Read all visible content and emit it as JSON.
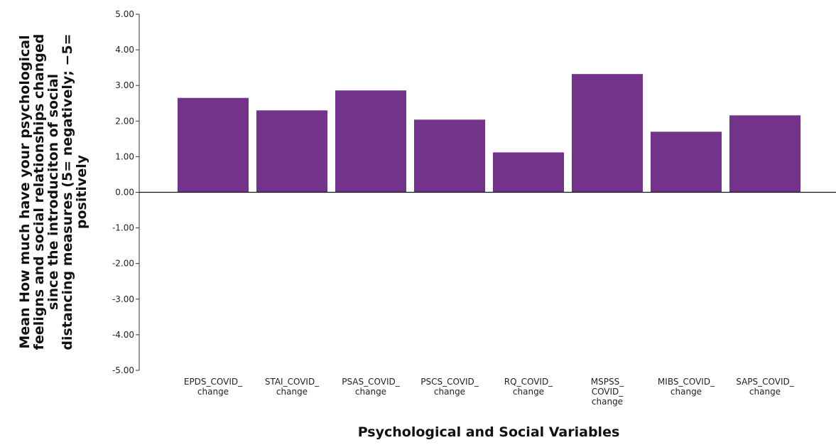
{
  "chart_data": {
    "type": "bar",
    "categories": [
      [
        "EPDS_COVID_",
        "change"
      ],
      [
        "STAI_COVID_",
        "change"
      ],
      [
        "PSAS_COVID_",
        "change"
      ],
      [
        "PSCS_COVID_",
        "change"
      ],
      [
        "RQ_COVID_",
        "change"
      ],
      [
        "MSPSS_",
        "COVID_",
        "change"
      ],
      [
        "MIBS_COVID_",
        "change"
      ],
      [
        "SAPS_COVID_",
        "change"
      ]
    ],
    "values": [
      2.65,
      2.3,
      2.86,
      2.04,
      1.12,
      3.32,
      1.7,
      2.16
    ],
    "xlabel": "Psychological and Social Variables",
    "ylabel_lines": [
      "Mean How much have your psychological",
      "feeligns and social relationships changed",
      "since the introduciton of social",
      "distancing measures (5= negatively; −5=",
      "positively"
    ],
    "ylim": [
      -5,
      5
    ],
    "yticks": [
      "5.00",
      "4.00",
      "3.00",
      "2.00",
      "1.00",
      "0.00",
      "-1.00",
      "-2.00",
      "-3.00",
      "-4.00",
      "-5.00"
    ],
    "bar_color": "#74338a",
    "grid": false,
    "legend": "none"
  }
}
